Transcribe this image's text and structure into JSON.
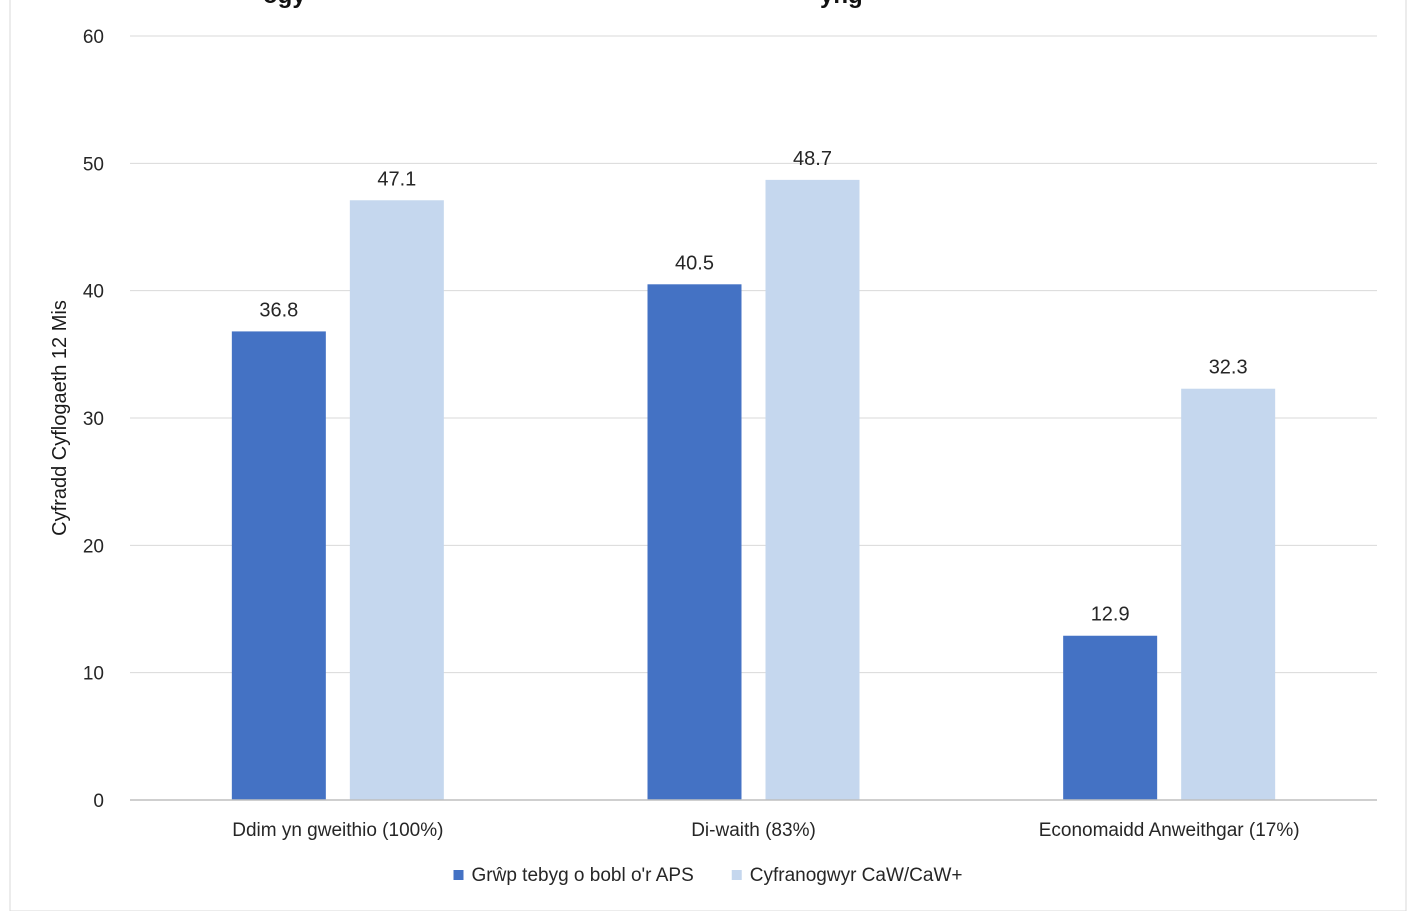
{
  "chart_data": {
    "type": "bar",
    "title": "",
    "title_partial_visible": "ogy",
    "title_partial_visible_2": "yng",
    "xlabel": "",
    "ylabel": "Cyfradd Cyflogaeth 12 Mis",
    "ylim": [
      0,
      60
    ],
    "yticks": [
      0,
      10,
      20,
      30,
      40,
      50,
      60
    ],
    "grid": true,
    "legend_position": "bottom",
    "categories": [
      "Ddim yn gweithio (100%)",
      "Di-waith (83%)",
      "Economaidd Anweithgar (17%)"
    ],
    "series": [
      {
        "name": "Grŵp tebyg o bobl o'r APS",
        "color": "#4472c4",
        "values": [
          36.8,
          40.5,
          12.9
        ]
      },
      {
        "name": "Cyfranogwyr CaW/CaW+",
        "color": "#c5d7ee",
        "values": [
          47.1,
          48.7,
          32.3
        ]
      }
    ]
  }
}
